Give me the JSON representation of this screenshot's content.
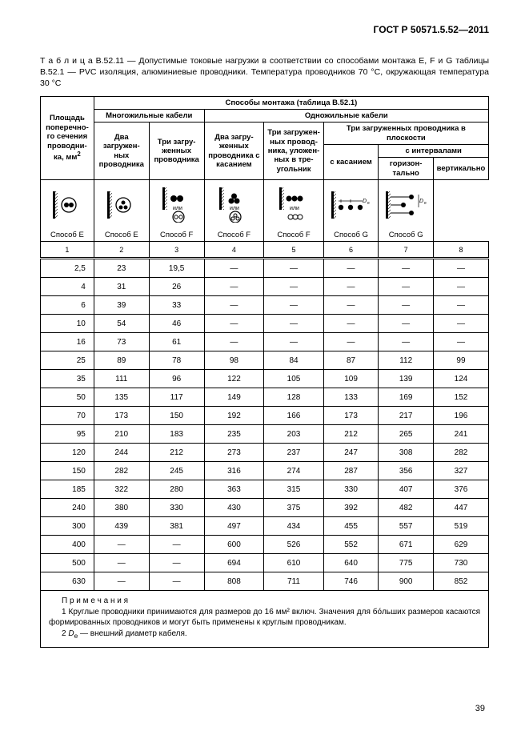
{
  "doc_id": "ГОСТ Р 50571.5.52—2011",
  "caption": "Т а б л и ц а   В.52.11  —  Допустимые токовые нагрузки в соответствии со способами монтажа E, F  и G таблицы В.52.1 — PVC изоляция, алюминиевые проводники.  Температура проводников 70 °C,  окружающая температура 30 °C",
  "headers": {
    "col_area": "Площадь поперечно-го сечения проводни-ка, мм",
    "mounting": "Способы монтажа (таблица В.52.1)",
    "multi": "Многожильные кабели",
    "single": "Одножильные кабели",
    "two_loaded": "Два загружен-ных проводника",
    "three_loaded": "Три загру-женных проводника",
    "two_loaded_touch": "Два загру-женных проводника с касанием",
    "three_loaded_tri": "Три загружен-ных провод-ника, уложен-ных в тре-угольник",
    "three_loaded_plane": "Три загруженных проводника в плоскости",
    "touching": "с касанием",
    "intervals": "с интервалами",
    "horiz": "горизон-тально",
    "vert": "вертикально",
    "mE": "Способ E",
    "mF": "Способ F",
    "mG": "Способ G"
  },
  "idx": [
    "1",
    "2",
    "3",
    "4",
    "5",
    "6",
    "7",
    "8"
  ],
  "rows": [
    {
      "a": "2,5",
      "v": [
        "23",
        "19,5",
        "—",
        "—",
        "—",
        "—",
        "—"
      ]
    },
    {
      "a": "4",
      "v": [
        "31",
        "26",
        "—",
        "—",
        "—",
        "—",
        "—"
      ]
    },
    {
      "a": "6",
      "v": [
        "39",
        "33",
        "—",
        "—",
        "—",
        "—",
        "—"
      ]
    },
    {
      "a": "10",
      "v": [
        "54",
        "46",
        "—",
        "—",
        "—",
        "—",
        "—"
      ]
    },
    {
      "a": "16",
      "v": [
        "73",
        "61",
        "—",
        "—",
        "—",
        "—",
        "—"
      ]
    },
    {
      "a": "25",
      "v": [
        "89",
        "78",
        "98",
        "84",
        "87",
        "112",
        "99"
      ]
    },
    {
      "a": "35",
      "v": [
        "111",
        "96",
        "122",
        "105",
        "109",
        "139",
        "124"
      ]
    },
    {
      "a": "50",
      "v": [
        "135",
        "117",
        "149",
        "128",
        "133",
        "169",
        "152"
      ]
    },
    {
      "a": "70",
      "v": [
        "173",
        "150",
        "192",
        "166",
        "173",
        "217",
        "196"
      ]
    },
    {
      "a": "95",
      "v": [
        "210",
        "183",
        "235",
        "203",
        "212",
        "265",
        "241"
      ]
    },
    {
      "a": "120",
      "v": [
        "244",
        "212",
        "273",
        "237",
        "247",
        "308",
        "282"
      ]
    },
    {
      "a": "150",
      "v": [
        "282",
        "245",
        "316",
        "274",
        "287",
        "356",
        "327"
      ]
    },
    {
      "a": "185",
      "v": [
        "322",
        "280",
        "363",
        "315",
        "330",
        "407",
        "376"
      ]
    },
    {
      "a": "240",
      "v": [
        "380",
        "330",
        "430",
        "375",
        "392",
        "482",
        "447"
      ]
    },
    {
      "a": "300",
      "v": [
        "439",
        "381",
        "497",
        "434",
        "455",
        "557",
        "519"
      ]
    },
    {
      "a": "400",
      "v": [
        "—",
        "—",
        "600",
        "526",
        "552",
        "671",
        "629"
      ]
    },
    {
      "a": "500",
      "v": [
        "—",
        "—",
        "694",
        "610",
        "640",
        "775",
        "730"
      ]
    },
    {
      "a": "630",
      "v": [
        "—",
        "—",
        "808",
        "711",
        "746",
        "900",
        "852"
      ]
    }
  ],
  "notes": {
    "title": "П р и м е ч а н и я",
    "n1": "1 Круглые проводники принимаются для размеров до  16 мм²  включ.  Значения для бо́льших размеров касаются  формированных проводников и могут  быть применены к круглым проводникам.",
    "n2_pre": "2 ",
    "n2_var": "D",
    "n2_sub": "e",
    "n2_post": " — внешний диаметр кабеля."
  },
  "page": "39"
}
